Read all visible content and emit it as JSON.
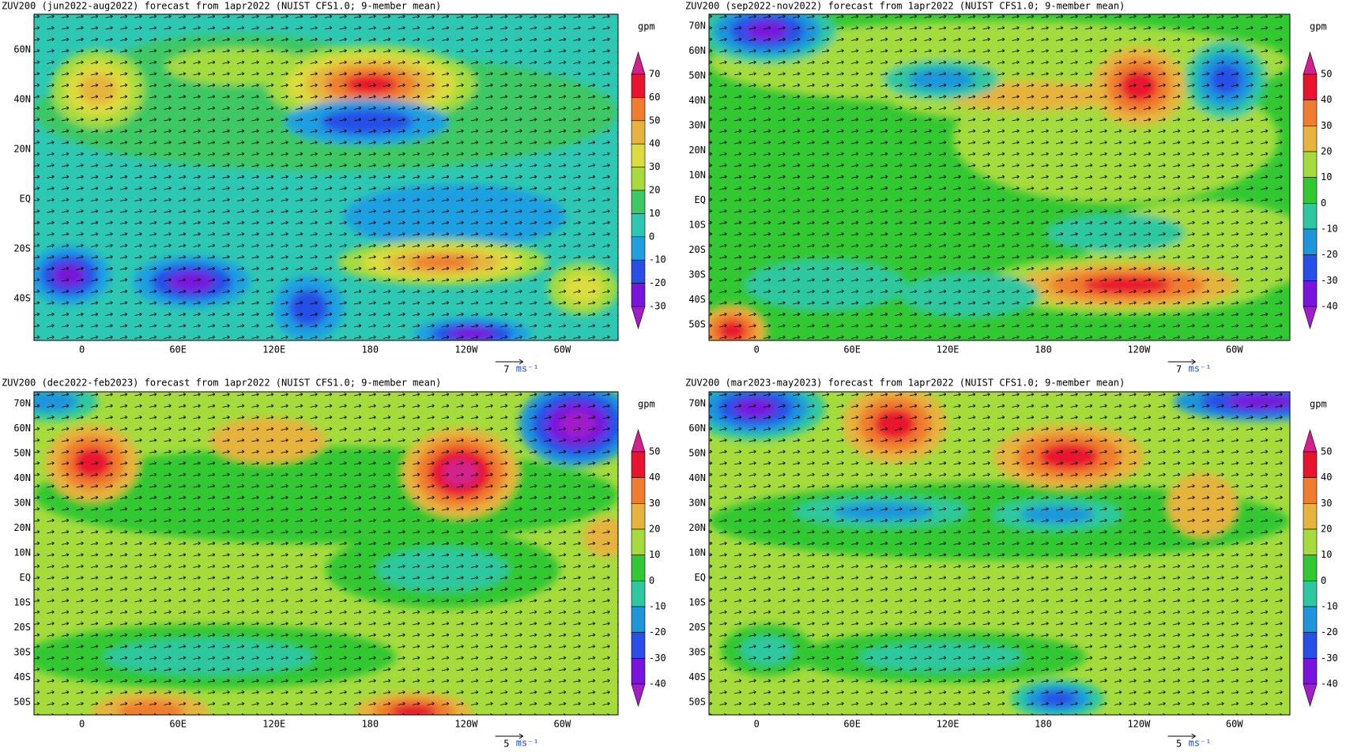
{
  "panels": [
    {
      "title": "ZUV200 (jun2022-aug2022) forecast from 1apr2022 (NUIST CFS1.0; 9-member mean)",
      "y_labels": [
        "60N",
        "40N",
        "20N",
        "EQ",
        "20S",
        "40S"
      ],
      "x_labels": [
        "0",
        "60E",
        "120E",
        "180",
        "120W",
        "60W"
      ],
      "colorbar": {
        "unit": "gpm",
        "labels": [
          70,
          60,
          50,
          40,
          30,
          20,
          10,
          0,
          -10,
          -20,
          -30
        ],
        "colors": [
          "#d2208c",
          "#e8142d",
          "#ef7d2d",
          "#e6b43c",
          "#dcdc3c",
          "#a5dc3c",
          "#3cc864",
          "#2dc8b4",
          "#1ea0e1",
          "#2850e6",
          "#7814dc",
          "#a01ec8"
        ]
      },
      "vector_ref": {
        "label": "7",
        "unit": "ms⁻¹"
      }
    },
    {
      "title": "ZUV200 (sep2022-nov2022) forecast from 1apr2022 (NUIST CFS1.0; 9-member mean)",
      "y_labels": [
        "70N",
        "60N",
        "50N",
        "40N",
        "30N",
        "20N",
        "10N",
        "EQ",
        "10S",
        "20S",
        "30S",
        "40S",
        "50S"
      ],
      "x_labels": [
        "0",
        "60E",
        "120E",
        "180",
        "120W",
        "60W"
      ],
      "colorbar": {
        "unit": "gpm",
        "labels": [
          50,
          40,
          30,
          20,
          10,
          0,
          -10,
          -20,
          -30,
          -40
        ],
        "colors": [
          "#d2208c",
          "#e8142d",
          "#ef7d2d",
          "#e6b43c",
          "#a5dc3c",
          "#32c832",
          "#2dc8a0",
          "#1e96dc",
          "#2850e6",
          "#7814dc",
          "#a01ec8"
        ]
      },
      "vector_ref": {
        "label": "7",
        "unit": "ms⁻¹"
      }
    },
    {
      "title": "ZUV200 (dec2022-feb2023) forecast from 1apr2022 (NUIST CFS1.0; 9-member mean)",
      "y_labels": [
        "70N",
        "60N",
        "50N",
        "40N",
        "30N",
        "20N",
        "10N",
        "EQ",
        "10S",
        "20S",
        "30S",
        "40S",
        "50S"
      ],
      "x_labels": [
        "0",
        "60E",
        "120E",
        "180",
        "120W",
        "60W"
      ],
      "colorbar": {
        "unit": "gpm",
        "labels": [
          50,
          40,
          30,
          20,
          10,
          0,
          -10,
          -20,
          -30,
          -40
        ],
        "colors": [
          "#d2208c",
          "#e8142d",
          "#ef7d2d",
          "#e6b43c",
          "#a5dc3c",
          "#32c832",
          "#2dc8a0",
          "#1e96dc",
          "#2850e6",
          "#7814dc",
          "#a01ec8"
        ]
      },
      "vector_ref": {
        "label": "5",
        "unit": "ms⁻¹"
      }
    },
    {
      "title": "ZUV200 (mar2023-may2023) forecast from 1apr2022 (NUIST CFS1.0; 9-member mean)",
      "y_labels": [
        "70N",
        "60N",
        "50N",
        "40N",
        "30N",
        "20N",
        "10N",
        "EQ",
        "10S",
        "20S",
        "30S",
        "40S",
        "50S"
      ],
      "x_labels": [
        "0",
        "60E",
        "120E",
        "180",
        "120W",
        "60W"
      ],
      "colorbar": {
        "unit": "gpm",
        "labels": [
          50,
          40,
          30,
          20,
          10,
          0,
          -10,
          -20,
          -30,
          -40
        ],
        "colors": [
          "#d2208c",
          "#e8142d",
          "#ef7d2d",
          "#e6b43c",
          "#a5dc3c",
          "#32c832",
          "#2dc8a0",
          "#1e96dc",
          "#2850e6",
          "#7814dc",
          "#a01ec8"
        ]
      },
      "vector_ref": {
        "label": "5",
        "unit": "ms⁻¹"
      }
    }
  ]
}
